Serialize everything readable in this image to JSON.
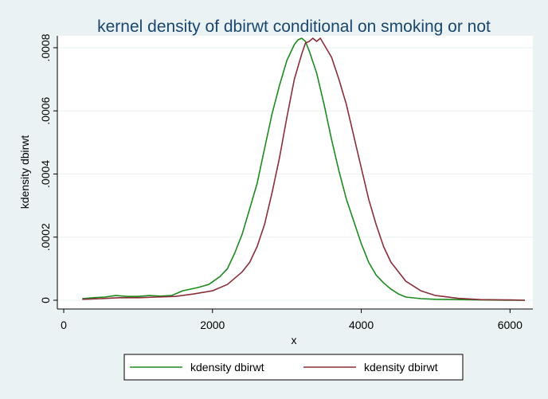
{
  "chart_data": {
    "type": "line",
    "title": "kernel density of dbirwt conditional on smoking or not",
    "xlabel": "x",
    "ylabel": "kdensity dbirwt",
    "xlim": [
      0,
      6200
    ],
    "ylim": [
      0,
      0.00082
    ],
    "x_ticks": [
      {
        "value": 0,
        "label": "0"
      },
      {
        "value": 2000,
        "label": "2000"
      },
      {
        "value": 4000,
        "label": "4000"
      },
      {
        "value": 6000,
        "label": "6000"
      }
    ],
    "y_ticks": [
      {
        "value": 0,
        "label": "0"
      },
      {
        "value": 0.0002,
        "label": ".0002"
      },
      {
        "value": 0.0004,
        "label": ".0004"
      },
      {
        "value": 0.0006,
        "label": ".0006"
      },
      {
        "value": 0.0008,
        "label": ".0008"
      }
    ],
    "grid": true,
    "legend_position": "bottom",
    "series": [
      {
        "name": "kdensity dbirwt",
        "color": "#1E8B1E",
        "x": [
          250,
          400,
          550,
          700,
          850,
          1000,
          1150,
          1300,
          1450,
          1600,
          1800,
          1950,
          2100,
          2200,
          2300,
          2400,
          2500,
          2600,
          2700,
          2800,
          2900,
          3000,
          3100,
          3150,
          3200,
          3250,
          3300,
          3400,
          3500,
          3600,
          3700,
          3800,
          3900,
          4000,
          4100,
          4200,
          4300,
          4400,
          4500,
          4600,
          4800,
          5000,
          5300,
          5600,
          6000,
          6200
        ],
        "y": [
          5e-06,
          8e-06,
          1e-05,
          1.5e-05,
          1.2e-05,
          1.2e-05,
          1.5e-05,
          1.3e-05,
          1.5e-05,
          3e-05,
          4e-05,
          5e-05,
          7.5e-05,
          0.0001,
          0.00015,
          0.00021,
          0.00029,
          0.00037,
          0.00048,
          0.00059,
          0.00068,
          0.00076,
          0.00081,
          0.000825,
          0.00083,
          0.00082,
          0.00079,
          0.00072,
          0.00062,
          0.00051,
          0.00041,
          0.00032,
          0.00025,
          0.00018,
          0.00012,
          8e-05,
          5.5e-05,
          3.5e-05,
          2e-05,
          1e-05,
          5e-06,
          3e-06,
          2e-06,
          1e-06,
          0.0,
          0.0
        ]
      },
      {
        "name": "kdensity dbirwt",
        "color": "#8B2E3A",
        "x": [
          250,
          500,
          750,
          1000,
          1250,
          1500,
          1750,
          2000,
          2200,
          2400,
          2500,
          2600,
          2700,
          2800,
          2900,
          3000,
          3100,
          3200,
          3250,
          3300,
          3350,
          3400,
          3450,
          3500,
          3600,
          3700,
          3800,
          3900,
          4000,
          4100,
          4200,
          4300,
          4400,
          4600,
          4800,
          5000,
          5300,
          5600,
          6000,
          6200
        ],
        "y": [
          3e-06,
          5e-06,
          8e-06,
          8e-06,
          1e-05,
          1.2e-05,
          2e-05,
          3e-05,
          5e-05,
          9e-05,
          0.00012,
          0.00017,
          0.00024,
          0.00034,
          0.00045,
          0.00058,
          0.0007,
          0.00078,
          0.000815,
          0.00082,
          0.00083,
          0.00082,
          0.00083,
          0.00081,
          0.00077,
          0.0007,
          0.00062,
          0.00052,
          0.00042,
          0.00032,
          0.00024,
          0.00017,
          0.00012,
          6e-05,
          3e-05,
          1.5e-05,
          6e-06,
          2e-06,
          1e-06,
          0.0
        ]
      }
    ]
  }
}
